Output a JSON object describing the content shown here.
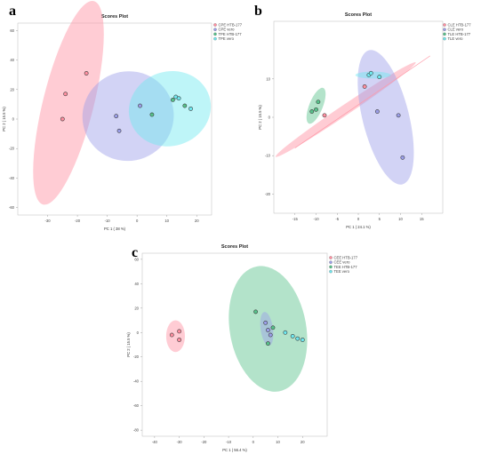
{
  "panels": [
    {
      "letter": "a"
    },
    {
      "letter": "b"
    },
    {
      "letter": "c"
    }
  ],
  "chart_data": [
    {
      "type": "scatter",
      "title": "Scores Plot",
      "xlabel": "PC 1 ( 38 %)",
      "ylabel": "PC 2 ( 15.5 %)",
      "xlim": [
        -40,
        25
      ],
      "ylim": [
        -65,
        65
      ],
      "xticks": [
        "-30",
        "-20",
        "-10",
        "0",
        "10",
        "20"
      ],
      "yticks": [
        "60",
        "40",
        "20",
        "0",
        "-20",
        "-40",
        "-60"
      ],
      "legend_position": "top-right",
      "series": [
        {
          "name": "CPE HTB-177",
          "color": "#ff8fa0",
          "points": [
            [
              -24,
              17
            ],
            [
              -17,
              31
            ],
            [
              -25,
              0
            ]
          ]
        },
        {
          "name": "CPE vero",
          "color": "#9b9ee8",
          "points": [
            [
              -7,
              2
            ],
            [
              -6,
              -8
            ],
            [
              1,
              9
            ]
          ]
        },
        {
          "name": "TPE HTB-177",
          "color": "#56c28a",
          "points": [
            [
              5,
              3
            ],
            [
              12,
              13
            ],
            [
              16,
              9
            ]
          ]
        },
        {
          "name": "TPE vero",
          "color": "#6fe8ef",
          "points": [
            [
              13,
              15
            ],
            [
              14,
              14
            ],
            [
              18,
              7
            ]
          ]
        }
      ],
      "ellipses": [
        {
          "series": "CPE HTB-177",
          "center": [
            -23,
            11
          ],
          "rx": 8.5,
          "ry": 71,
          "rotation_deg": 14
        },
        {
          "series": "CPE vero",
          "center": [
            -3,
            2
          ],
          "rx": 15,
          "ry": 31,
          "rotation_deg": 68
        },
        {
          "series": "TPE vero",
          "center": [
            11,
            7
          ],
          "rx": 12.5,
          "ry": 28,
          "rotation_deg": 72
        }
      ]
    },
    {
      "type": "scatter",
      "title": "Scores Plot",
      "xlabel": "PC 1 ( 24.1 %)",
      "ylabel": "PC 2 ( 15.5 %)",
      "xlim": [
        -20,
        20
      ],
      "ylim": [
        -25,
        25
      ],
      "xticks": [
        "-15",
        "-10",
        "-5",
        "0",
        "5",
        "10",
        "15"
      ],
      "yticks": [
        "10",
        "0",
        "-10",
        "-20"
      ],
      "legend_position": "top-right",
      "series": [
        {
          "name": "CLE HTB-177",
          "color": "#ff8fa0",
          "points": [
            [
              -8,
              0.5
            ],
            [
              1.5,
              8
            ]
          ]
        },
        {
          "name": "CLE vero",
          "color": "#9b9ee8",
          "points": [
            [
              4.5,
              1.5
            ],
            [
              9.5,
              0.5
            ],
            [
              10.5,
              -10.5
            ]
          ]
        },
        {
          "name": "TLE HTB-177",
          "color": "#56c28a",
          "points": [
            [
              -11,
              1.5
            ],
            [
              -10,
              2
            ],
            [
              -9.5,
              4
            ]
          ]
        },
        {
          "name": "TLE vero",
          "color": "#6fe8ef",
          "points": [
            [
              2.5,
              11
            ],
            [
              3,
              11.5
            ],
            [
              5,
              10.5
            ]
          ]
        }
      ],
      "ellipses": [
        {
          "series": "CLE HTB-177",
          "center": [
            -3,
            2
          ],
          "rx": 1.2,
          "ry": 22,
          "rotation_deg": 56
        },
        {
          "series": "CLE vero",
          "center": [
            6.5,
            0
          ],
          "rx": 5.5,
          "ry": 18,
          "rotation_deg": -14
        },
        {
          "series": "TLE HTB-177",
          "center": [
            -10,
            3
          ],
          "rx": 1.6,
          "ry": 5,
          "rotation_deg": 22
        },
        {
          "series": "TLE vero",
          "center": [
            3.5,
            11
          ],
          "rx": 4.2,
          "ry": 0.9,
          "rotation_deg": 0
        }
      ]
    },
    {
      "type": "scatter",
      "title": "Scores Plot",
      "xlabel": "PC 1 ( 56.4 %)",
      "ylabel": "PC 2 ( 15.5 %)",
      "xlim": [
        -45,
        30
      ],
      "ylim": [
        -85,
        65
      ],
      "xticks": [
        "-40",
        "-30",
        "-20",
        "-10",
        "0",
        "10",
        "20"
      ],
      "yticks": [
        "60",
        "40",
        "20",
        "0",
        "-20",
        "-40",
        "-60",
        "-80"
      ],
      "legend_position": "top-right",
      "series": [
        {
          "name": "CEE HTB-177",
          "color": "#ff8fa0",
          "points": [
            [
              -33,
              -2
            ],
            [
              -30,
              1
            ],
            [
              -30,
              -6
            ]
          ]
        },
        {
          "name": "CEE vero",
          "color": "#9b9ee8",
          "points": [
            [
              5,
              8
            ],
            [
              6,
              2
            ],
            [
              7,
              -2
            ]
          ]
        },
        {
          "name": "TEE HTB-177",
          "color": "#56c28a",
          "points": [
            [
              1,
              17
            ],
            [
              6,
              -9
            ],
            [
              8,
              4
            ]
          ]
        },
        {
          "name": "TEE vero",
          "color": "#6fe8ef",
          "points": [
            [
              13,
              0
            ],
            [
              16,
              -3
            ],
            [
              18,
              -5
            ],
            [
              20,
              -6
            ]
          ]
        }
      ],
      "ellipses": [
        {
          "series": "CEE HTB-177",
          "center": [
            -31.5,
            -3
          ],
          "rx": 3.8,
          "ry": 13,
          "rotation_deg": 0
        },
        {
          "series": "TEE HTB-177",
          "center": [
            6,
            3
          ],
          "rx": 15.5,
          "ry": 52,
          "rotation_deg": -10
        },
        {
          "series": "CEE vero",
          "center": [
            5.5,
            3
          ],
          "rx": 2.5,
          "ry": 14,
          "rotation_deg": -8
        }
      ]
    }
  ]
}
